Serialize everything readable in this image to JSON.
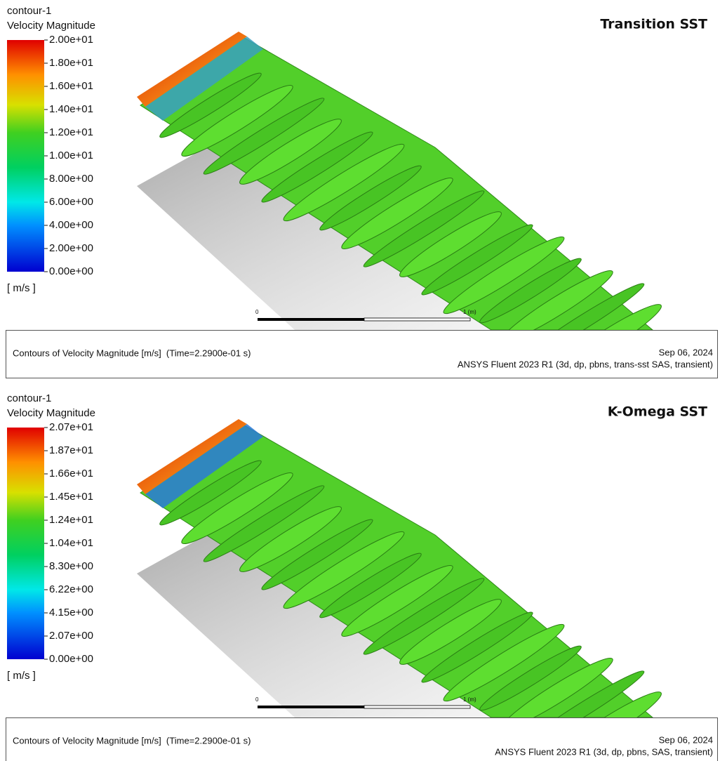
{
  "panels": [
    {
      "legend_title": "contour-1",
      "variable": "Velocity Magnitude",
      "ticks": [
        "2.00e+01",
        "1.80e+01",
        "1.60e+01",
        "1.40e+01",
        "1.20e+01",
        "1.00e+01",
        "8.00e+00",
        "6.00e+00",
        "4.00e+00",
        "2.00e+00",
        "0.00e+00"
      ],
      "units": "[ m/s ]",
      "model": "Transition SST",
      "scale_start": "0",
      "scale_end": "1 (m)",
      "caption": "Contours of Velocity Magnitude [m/s]  (Time=2.2900e-01 s)",
      "date": "Sep 06, 2024",
      "solver": "ANSYS Fluent 2023 R1 (3d, dp, pbns, trans-sst SAS, transient)"
    },
    {
      "legend_title": "contour-1",
      "variable": "Velocity Magnitude",
      "ticks": [
        "2.07e+01",
        "1.87e+01",
        "1.66e+01",
        "1.45e+01",
        "1.24e+01",
        "1.04e+01",
        "8.30e+00",
        "6.22e+00",
        "4.15e+00",
        "2.07e+00",
        "0.00e+00"
      ],
      "units": "[ m/s ]",
      "model": "K-Omega SST",
      "scale_start": "0",
      "scale_end": "1 (m)",
      "caption": "Contours of Velocity Magnitude [m/s]  (Time=2.2900e-01 s)",
      "date": "Sep 06, 2024",
      "solver": "ANSYS Fluent 2023 R1 (3d, dp, pbns, SAS, transient)"
    }
  ]
}
